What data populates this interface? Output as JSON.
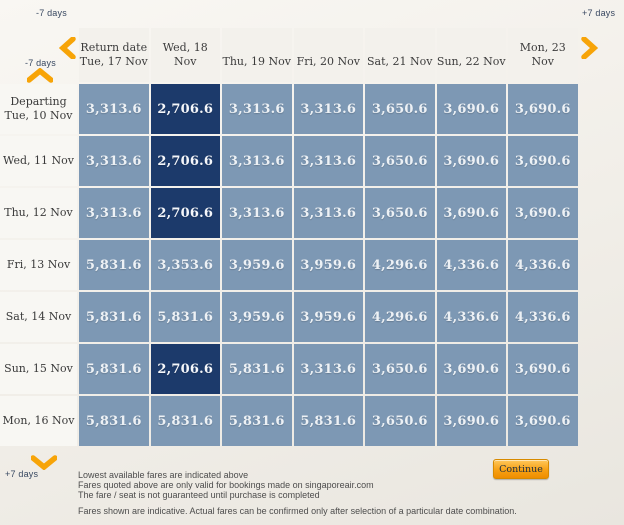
{
  "colors": {
    "accent_orange": "#F7A408",
    "cell_blue": "#7D98B4",
    "lowest_fare_navy": "#1C3A6B",
    "header_bg": "#F3F1EC",
    "page_bg": "#F1EEE8"
  },
  "nav": {
    "top_left_label": "-7 days",
    "left_label": "-7 days",
    "top_right_label": "+7 days",
    "bottom_left_label": "+7 days"
  },
  "header": {
    "title": "Return date",
    "dates": [
      "Tue, 17 Nov",
      "Wed, 18 Nov",
      "Thu, 19 Nov",
      "Fri, 20 Nov",
      "Sat, 21 Nov",
      "Sun, 22 Nov",
      "Mon, 23 Nov"
    ]
  },
  "departing_title": "Departing",
  "rows": [
    {
      "label": "Tue, 10 Nov",
      "fares": [
        "3,313.6",
        "2,706.6",
        "3,313.6",
        "3,313.6",
        "3,650.6",
        "3,690.6",
        "3,690.6"
      ],
      "lowest": [
        1
      ]
    },
    {
      "label": "Wed, 11 Nov",
      "fares": [
        "3,313.6",
        "2,706.6",
        "3,313.6",
        "3,313.6",
        "3,650.6",
        "3,690.6",
        "3,690.6"
      ],
      "lowest": [
        1
      ]
    },
    {
      "label": "Thu, 12 Nov",
      "fares": [
        "3,313.6",
        "2,706.6",
        "3,313.6",
        "3,313.6",
        "3,650.6",
        "3,690.6",
        "3,690.6"
      ],
      "lowest": [
        1
      ]
    },
    {
      "label": "Fri, 13 Nov",
      "fares": [
        "5,831.6",
        "3,353.6",
        "3,959.6",
        "3,959.6",
        "4,296.6",
        "4,336.6",
        "4,336.6"
      ],
      "lowest": []
    },
    {
      "label": "Sat, 14 Nov",
      "fares": [
        "5,831.6",
        "5,831.6",
        "3,959.6",
        "3,959.6",
        "4,296.6",
        "4,336.6",
        "4,336.6"
      ],
      "lowest": []
    },
    {
      "label": "Sun, 15 Nov",
      "fares": [
        "5,831.6",
        "2,706.6",
        "5,831.6",
        "3,313.6",
        "3,650.6",
        "3,690.6",
        "3,690.6"
      ],
      "lowest": [
        1
      ]
    },
    {
      "label": "Mon, 16 Nov",
      "fares": [
        "5,831.6",
        "5,831.6",
        "5,831.6",
        "5,831.6",
        "3,650.6",
        "3,690.6",
        "3,690.6"
      ],
      "lowest": []
    }
  ],
  "footer": {
    "notes": [
      "Lowest available fares are indicated above",
      "Fares quoted above are only valid for bookings made on singaporeair.com",
      "The fare / seat is not guaranteed until purchase is completed"
    ],
    "disclaimer": "Fares shown are indicative. Actual fares can be confirmed only after selection of a particular date combination.",
    "continue_label": "Continue"
  }
}
